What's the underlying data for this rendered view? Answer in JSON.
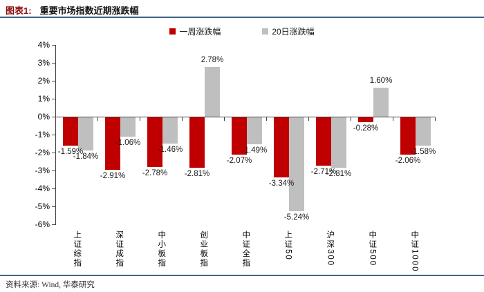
{
  "title": {
    "prefix": "图表1:",
    "text": "重要市场指数近期涨跌幅"
  },
  "legend": [
    {
      "label": "一周涨跌幅",
      "color": "#c00000"
    },
    {
      "label": "20日涨跌幅",
      "color": "#bfbfbf"
    }
  ],
  "footer": {
    "source": "资料来源: Wind, 华泰研究"
  },
  "colors": {
    "accent_red": "#c00000",
    "bar_gray": "#bfbfbf",
    "rule_blue": "#41648e",
    "title_red": "#8b0e0e"
  },
  "chart_data": {
    "type": "bar",
    "title": "重要市场指数近期涨跌幅",
    "categories": [
      "上证综指",
      "深证成指",
      "中小板指",
      "创业板指",
      "中证全指",
      "上证50",
      "沪深300",
      "中证500",
      "中证1000"
    ],
    "series": [
      {
        "name": "一周涨跌幅",
        "color": "#c00000",
        "values": [
          -1.59,
          -2.91,
          -2.78,
          -2.81,
          -2.07,
          -3.34,
          -2.71,
          -0.28,
          -2.06
        ]
      },
      {
        "name": "20日涨跌幅",
        "color": "#bfbfbf",
        "values": [
          -1.84,
          -1.06,
          -1.46,
          2.78,
          -1.49,
          -5.24,
          -2.81,
          1.6,
          -1.58
        ]
      }
    ],
    "value_labels": [
      [
        "-1.59%",
        "-2.91%",
        "-2.78%",
        "-2.81%",
        "-2.07%",
        "-3.34%",
        "-2.71%",
        "-0.28%",
        "-2.06%"
      ],
      [
        "-1.84%",
        "-1.06%",
        "-1.46%",
        "2.78%",
        "-1.49%",
        "-5.24%",
        "-2.81%",
        "1.60%",
        "-1.58%"
      ]
    ],
    "xlabel": "",
    "ylabel": "",
    "ylim": [
      -6,
      4
    ],
    "y_step": 1,
    "y_ticks": [
      "4%",
      "3%",
      "2%",
      "1%",
      "0%",
      "-1%",
      "-2%",
      "-3%",
      "-4%",
      "-5%",
      "-6%"
    ],
    "grid": false,
    "legend_position": "top"
  }
}
